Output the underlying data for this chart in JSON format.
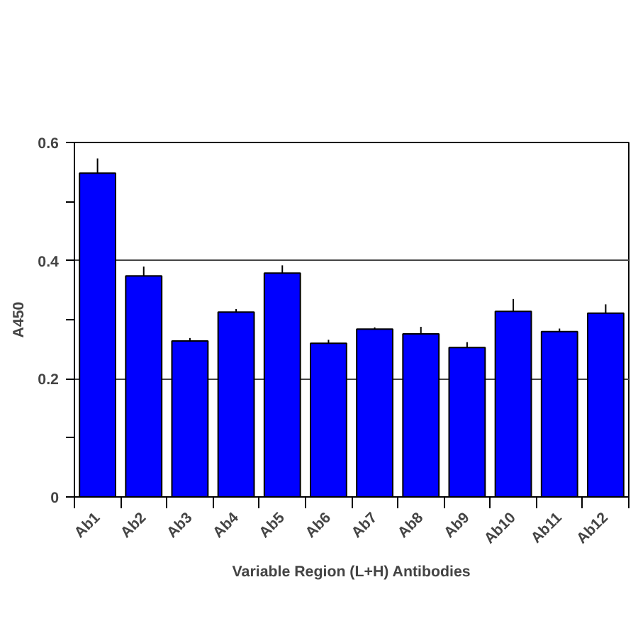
{
  "chart_data": {
    "type": "bar",
    "xlabel": "Variable Region (L+H) Antibodies",
    "ylabel": "A450",
    "categories": [
      "Ab1",
      "Ab2",
      "Ab3",
      "Ab4",
      "Ab5",
      "Ab6",
      "Ab7",
      "Ab8",
      "Ab9",
      "Ab10",
      "Ab11",
      "Ab12"
    ],
    "values": [
      0.548,
      0.374,
      0.264,
      0.313,
      0.379,
      0.26,
      0.284,
      0.276,
      0.253,
      0.314,
      0.28,
      0.311
    ],
    "errors": [
      [
        0.548,
        0.573
      ],
      [
        0.374,
        0.39
      ],
      [
        0.264,
        0.269
      ],
      [
        0.313,
        0.318
      ],
      [
        0.379,
        0.392
      ],
      [
        0.26,
        0.266
      ],
      [
        0.284,
        0.287
      ],
      [
        0.276,
        0.288
      ],
      [
        0.253,
        0.262
      ],
      [
        0.314,
        0.335
      ],
      [
        0.28,
        0.285
      ],
      [
        0.311,
        0.326
      ]
    ],
    "color": "#0000ff",
    "ylim": [
      0,
      0.6
    ],
    "yticks": [
      0,
      {
        "value": 0.1,
        "label": null
      },
      0.2,
      {
        "value": 0.3,
        "label": null
      },
      0.4,
      {
        "value": 0.5,
        "label": null
      },
      0.6
    ],
    "grid": "y"
  }
}
